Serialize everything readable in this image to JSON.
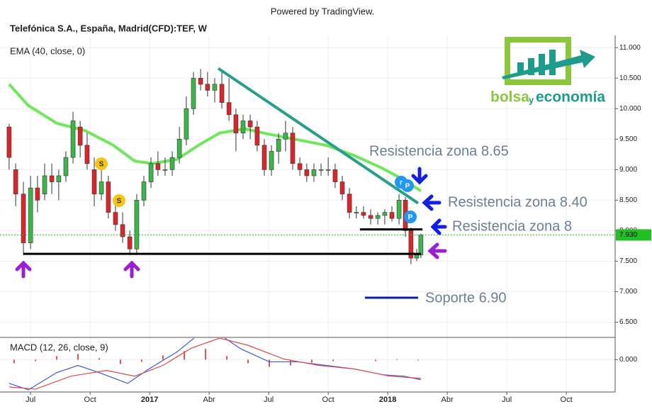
{
  "credit": "Powered by TradingView.",
  "logo": {
    "part1": "bolsa",
    "part2": "y",
    "part3": "economía"
  },
  "markers": [
    "S",
    "S",
    "r",
    "P",
    "P"
  ],
  "chart_data": [
    {
      "type": "candlestick",
      "title": "Telefónica S.A., España, Madrid(CFD):TEF, W",
      "x": [
        4.92,
        5.25,
        5.64,
        6.0,
        6.35,
        6.71,
        7.07,
        7.42,
        7.78,
        8.14,
        8.5,
        8.85,
        9.21,
        9.57,
        9.92,
        10.28,
        10.64,
        11.0,
        11.35,
        11.71,
        12.07,
        12.42,
        12.78,
        13.14,
        13.5,
        13.85,
        14.21,
        14.57,
        14.92,
        15.28,
        15.64,
        16.0,
        16.35,
        16.71,
        17.07,
        17.42,
        17.78,
        18.14,
        18.5,
        18.85,
        19.21,
        19.57,
        19.92,
        20.28,
        20.64,
        21.0,
        21.35,
        21.71,
        22.07,
        22.42,
        22.78,
        23.14,
        23.5,
        23.85,
        24.21,
        24.57,
        24.89,
        25.17,
        25.46,
        25.67
      ],
      "open": [
        9.7,
        9.0,
        8.6,
        7.8,
        8.7,
        8.6,
        8.9,
        8.8,
        8.9,
        9.2,
        9.7,
        9.4,
        9.0,
        8.6,
        8.8,
        8.3,
        8.1,
        7.9,
        7.7,
        8.5,
        8.8,
        9.1,
        9.0,
        9.0,
        9.2,
        9.5,
        10.0,
        10.5,
        10.4,
        10.3,
        10.4,
        10.1,
        9.9,
        9.6,
        9.8,
        9.7,
        9.4,
        9.0,
        9.3,
        9.5,
        9.6,
        9.1,
        9.0,
        8.9,
        9.0,
        9.0,
        9.0,
        8.8,
        8.6,
        8.3,
        8.3,
        8.25,
        8.2,
        8.25,
        8.3,
        8.2,
        8.5,
        8.0,
        7.55,
        7.6
      ],
      "high": [
        9.75,
        9.1,
        8.8,
        8.9,
        8.9,
        9.1,
        9.1,
        9.0,
        9.3,
        9.95,
        9.8,
        9.6,
        9.2,
        9.0,
        8.9,
        8.5,
        8.3,
        8.0,
        8.6,
        8.9,
        9.2,
        9.3,
        9.2,
        9.3,
        9.7,
        10.2,
        10.6,
        10.65,
        10.6,
        10.5,
        10.6,
        10.5,
        10.0,
        9.9,
        9.9,
        9.8,
        9.5,
        9.4,
        9.6,
        9.8,
        9.7,
        9.2,
        9.1,
        9.1,
        9.1,
        9.2,
        9.1,
        8.9,
        8.7,
        8.4,
        8.4,
        8.35,
        8.3,
        8.35,
        8.4,
        8.6,
        8.55,
        8.05,
        7.7,
        7.95
      ],
      "low": [
        9.0,
        8.4,
        7.6,
        7.7,
        8.3,
        8.5,
        8.6,
        8.5,
        8.8,
        9.1,
        9.2,
        9.0,
        8.4,
        8.5,
        8.2,
        8.0,
        7.8,
        7.6,
        7.6,
        8.4,
        8.7,
        8.9,
        8.9,
        8.9,
        9.1,
        9.4,
        9.9,
        10.3,
        10.2,
        10.1,
        10.0,
        9.8,
        9.3,
        9.5,
        9.5,
        9.3,
        8.9,
        8.9,
        9.1,
        9.3,
        9.0,
        8.9,
        8.8,
        8.8,
        8.9,
        8.9,
        8.7,
        8.5,
        8.2,
        8.2,
        8.2,
        8.1,
        8.1,
        8.1,
        8.15,
        8.1,
        7.9,
        7.45,
        7.5,
        7.55
      ],
      "close": [
        9.2,
        8.6,
        7.8,
        8.7,
        8.5,
        8.9,
        8.8,
        8.9,
        9.2,
        9.8,
        9.4,
        9.1,
        8.6,
        8.8,
        8.3,
        8.1,
        7.9,
        7.7,
        8.5,
        8.8,
        9.1,
        9.0,
        9.0,
        9.2,
        9.5,
        10.0,
        10.5,
        10.4,
        10.3,
        10.4,
        10.1,
        9.9,
        9.6,
        9.8,
        9.7,
        9.4,
        9.0,
        9.3,
        9.5,
        9.6,
        9.1,
        9.0,
        8.9,
        9.0,
        9.0,
        9.0,
        8.8,
        8.6,
        8.3,
        8.3,
        8.25,
        8.2,
        8.25,
        8.3,
        8.2,
        8.5,
        8.0,
        7.55,
        7.6,
        7.93
      ],
      "up_color": "#3cb64a",
      "down_color": "#d9262c",
      "series": [
        {
          "name": "EMA (40, close, 0)",
          "color": "#6ee85a",
          "x": [
            4.92,
            5.89,
            7.32,
            8.75,
            10.17,
            11.25,
            12.14,
            13.39,
            14.46,
            15.53,
            16.78,
            18.03,
            19.46,
            20.89,
            22.32,
            23.75,
            24.82,
            25.67
          ],
          "values": [
            10.4,
            10.05,
            9.76,
            9.64,
            9.4,
            9.14,
            9.1,
            9.17,
            9.4,
            9.6,
            9.67,
            9.58,
            9.49,
            9.4,
            9.23,
            9.02,
            8.83,
            8.65
          ]
        }
      ],
      "xlim": [
        4.46,
        35.46
      ],
      "ylim": [
        6.25,
        11.2
      ],
      "yticks": [
        {
          "value": 11,
          "label": "11.000"
        },
        {
          "value": 10.5,
          "label": "10.500"
        },
        {
          "value": 10,
          "label": "10.000"
        },
        {
          "value": 9.5,
          "label": "9.500"
        },
        {
          "value": 9,
          "label": "9.000"
        },
        {
          "value": 8.5,
          "label": "8.500"
        },
        {
          "value": 8,
          "label": "8.000"
        },
        {
          "value": 7.5,
          "label": "7.500"
        },
        {
          "value": 7,
          "label": "7.000"
        },
        {
          "value": 6.5,
          "label": "6.500"
        }
      ],
      "grid": true,
      "last_price": {
        "value": 7.93,
        "label": "7.930",
        "color": "#22c022"
      },
      "lines": [
        {
          "x": [
            15.46,
            25.53
          ],
          "y": [
            10.66,
            8.45
          ],
          "color": "#26a08a"
        },
        {
          "x": [
            5.64,
            25.67
          ],
          "y": [
            7.62,
            7.62
          ],
          "color": "#000000"
        },
        {
          "x": [
            22.6,
            25.75
          ],
          "y": [
            8.02,
            8.02
          ],
          "color": "#000000"
        },
        {
          "x": [
            22.85,
            25.53
          ],
          "y": [
            6.9,
            6.9
          ],
          "color": "#0a1fa8"
        }
      ],
      "annotations": [
        "Resistencia zona 8.65",
        "Resistencia zona 8.40",
        "Resistencia zona 8",
        "Soporte 6.90"
      ]
    },
    {
      "type": "line",
      "title": "MACD (12, 26, close, 9)",
      "xlim": [
        4.46,
        35.46
      ],
      "xticks": [
        {
          "value": 6,
          "label": "Jul"
        },
        {
          "value": 9,
          "label": "Oct"
        },
        {
          "value": 12,
          "label": "2017"
        },
        {
          "value": 15,
          "label": "Abr"
        },
        {
          "value": 18,
          "label": "Jul"
        },
        {
          "value": 21,
          "label": "Oct"
        },
        {
          "value": 24,
          "label": "2018"
        },
        {
          "value": 27,
          "label": "Abr"
        },
        {
          "value": 30,
          "label": "Jul"
        },
        {
          "value": 33,
          "label": "Oct"
        }
      ],
      "ylim": [
        -0.45,
        0.3
      ],
      "yticks": [
        {
          "value": 0,
          "label": "0.000"
        }
      ],
      "series": [
        {
          "color": "#3a5bd9",
          "x": [
            4.92,
            5.89,
            7.32,
            8.39,
            9.46,
            10.89,
            11.96,
            13.39,
            14.46,
            15.53,
            16.6,
            18.03,
            19.46,
            20.89,
            22.32,
            23.75,
            24.82,
            25.67
          ],
          "values": [
            -0.33,
            -0.42,
            -0.18,
            -0.08,
            -0.18,
            -0.33,
            -0.13,
            0.11,
            0.35,
            0.35,
            0.15,
            -0.03,
            -0.03,
            -0.08,
            -0.13,
            -0.21,
            -0.23,
            -0.28
          ]
        },
        {
          "color": "#e04848",
          "x": [
            4.92,
            6.25,
            8.03,
            9.82,
            11.25,
            12.67,
            14.1,
            15.53,
            16.96,
            18.75,
            20.53,
            22.32,
            24.1,
            25.67
          ],
          "values": [
            -0.38,
            -0.41,
            -0.23,
            -0.15,
            -0.23,
            -0.08,
            0.16,
            0.3,
            0.2,
            0.01,
            -0.08,
            -0.13,
            -0.23,
            -0.26
          ]
        }
      ],
      "bars": {
        "color": "#e05050",
        "x": [
          5.17,
          6.25,
          7.32,
          8.39,
          9.46,
          10.53,
          11.6,
          12.67,
          13.75,
          14.82,
          15.89,
          16.96,
          18.03,
          19.1,
          20.17,
          21.25,
          22.32,
          23.39,
          24.46,
          25.53
        ],
        "values": [
          -0.05,
          -0.02,
          0.05,
          0.08,
          0.02,
          -0.06,
          -0.03,
          0.06,
          0.12,
          0.15,
          0.05,
          -0.05,
          -0.1,
          -0.08,
          -0.04,
          -0.02,
          0.0,
          -0.02,
          0.01,
          -0.01
        ]
      }
    }
  ]
}
